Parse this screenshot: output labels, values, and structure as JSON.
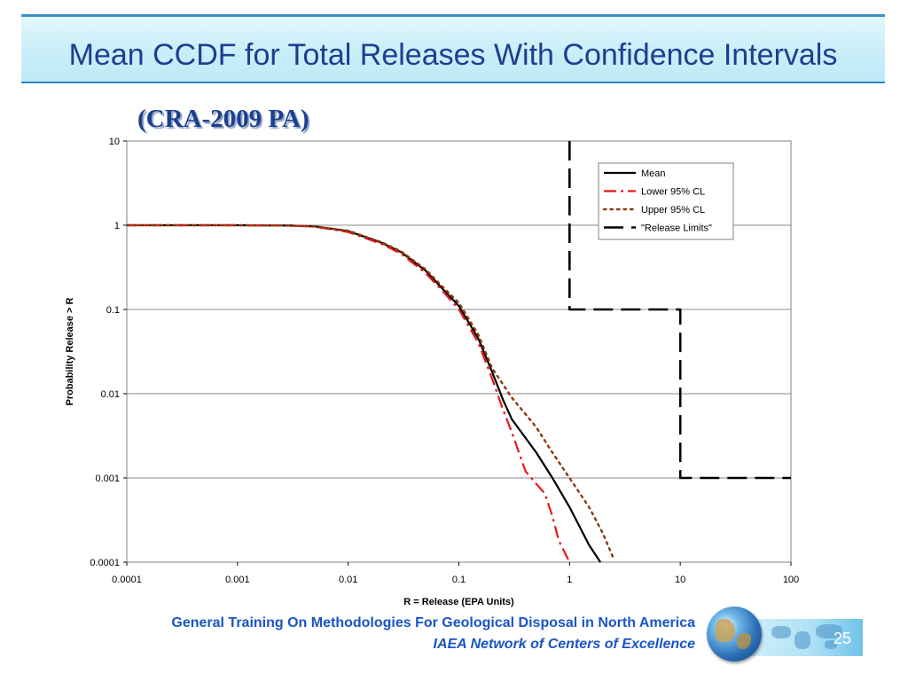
{
  "slide": {
    "title": "Mean CCDF for Total Releases With Confidence Intervals",
    "subtitle": "(CRA-2009 PA)",
    "footer_line1": "General Training On Methodologies For Geological Disposal in North America",
    "footer_line2": "IAEA Network of Centers of Excellence",
    "page_number": "25"
  },
  "chart_data": {
    "type": "line",
    "xlabel": "R = Release (EPA Units)",
    "ylabel": "Probability Release > R",
    "x_scale": "log",
    "y_scale": "log",
    "xlim": [
      0.0001,
      100
    ],
    "ylim": [
      0.0001,
      10
    ],
    "x_ticks": [
      "0.0001",
      "0.001",
      "0.01",
      "0.1",
      "1",
      "10",
      "100"
    ],
    "y_ticks": [
      "10",
      "1",
      "0.1",
      "0.01",
      "0.001",
      "0.0001"
    ],
    "grid": "horizontal",
    "legend_position": "top-right",
    "series": [
      {
        "name": "Mean",
        "color": "#000000",
        "style": "solid",
        "x": [
          0.0001,
          0.001,
          0.003,
          0.005,
          0.01,
          0.02,
          0.03,
          0.05,
          0.07,
          0.1,
          0.15,
          0.2,
          0.25,
          0.3,
          0.5,
          0.7,
          1,
          1.5,
          1.9
        ],
        "y": [
          1,
          1,
          0.99,
          0.97,
          0.85,
          0.62,
          0.48,
          0.29,
          0.18,
          0.11,
          0.045,
          0.018,
          0.0085,
          0.005,
          0.002,
          0.001,
          0.00045,
          0.00016,
          0.0001
        ]
      },
      {
        "name": "Lower 95% CL",
        "color": "#e8161b",
        "style": "dash-dot",
        "x": [
          0.0001,
          0.001,
          0.003,
          0.005,
          0.01,
          0.02,
          0.03,
          0.05,
          0.07,
          0.1,
          0.15,
          0.2,
          0.25,
          0.3,
          0.4,
          0.5,
          0.6,
          0.7,
          0.8,
          1
        ],
        "y": [
          1,
          1,
          0.99,
          0.96,
          0.83,
          0.6,
          0.46,
          0.27,
          0.17,
          0.1,
          0.04,
          0.015,
          0.0065,
          0.0035,
          0.0012,
          0.00085,
          0.00065,
          0.00035,
          0.00018,
          0.0001
        ]
      },
      {
        "name": "Upper 95% CL",
        "color": "#8b3a0a",
        "style": "dotted",
        "x": [
          0.0001,
          0.001,
          0.003,
          0.005,
          0.01,
          0.02,
          0.03,
          0.05,
          0.07,
          0.1,
          0.15,
          0.2,
          0.3,
          0.5,
          0.7,
          1,
          1.5,
          2,
          2.5
        ],
        "y": [
          1,
          1,
          0.99,
          0.97,
          0.86,
          0.63,
          0.49,
          0.3,
          0.19,
          0.12,
          0.05,
          0.02,
          0.009,
          0.004,
          0.002,
          0.001,
          0.00045,
          0.00022,
          0.00011
        ]
      },
      {
        "name": "\"Release Limits\"",
        "color": "#000000",
        "style": "long-dash",
        "x": [
          1,
          1,
          10,
          10,
          100
        ],
        "y": [
          10,
          0.1,
          0.1,
          0.001,
          0.001
        ]
      }
    ]
  }
}
